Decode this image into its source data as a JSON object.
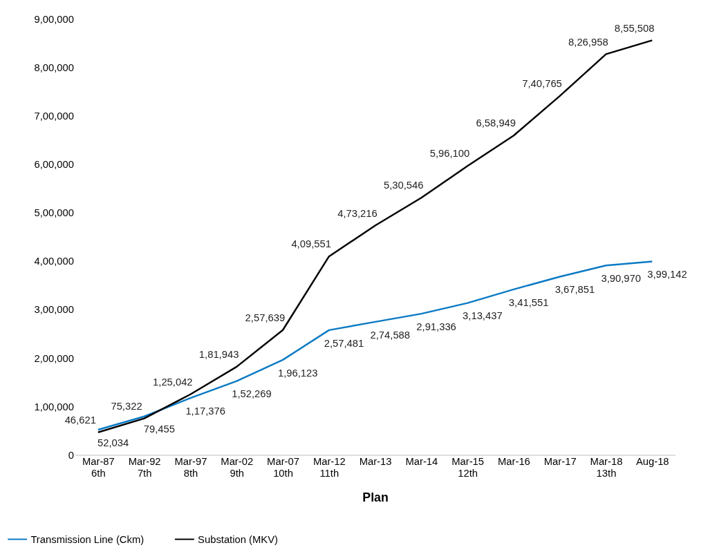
{
  "chart_data": {
    "type": "line",
    "xlabel": "Plan",
    "categories": [
      "Mar-87\n6th",
      "Mar-92\n7th",
      "Mar-97\n8th",
      "Mar-02\n9th",
      "Mar-07\n10th",
      "Mar-12\n11th",
      "Mar-13",
      "Mar-14",
      "Mar-15\n12th",
      "Mar-16",
      "Mar-17",
      "Mar-18\n13th",
      "Aug-18"
    ],
    "series": [
      {
        "name": "Transmission Line (Ckm)",
        "color": "#0a7ac4",
        "values": [
          52034,
          79455,
          117376,
          152269,
          196123,
          257481,
          274588,
          291336,
          313437,
          341551,
          367851,
          390970,
          399142
        ],
        "value_labels": [
          "52,034",
          "79,455",
          "1,17,376",
          "1,52,269",
          "1,96,123",
          "2,57,481",
          "2,74,588",
          "2,91,336",
          "3,13,437",
          "3,41,551",
          "3,67,851",
          "3,90,970",
          "3,99,142"
        ]
      },
      {
        "name": "Substation (MKV)",
        "color": "#000000",
        "values": [
          46621,
          75322,
          125042,
          181943,
          257639,
          409551,
          473216,
          530546,
          596100,
          658949,
          740765,
          826958,
          855508
        ],
        "value_labels": [
          "46,621",
          "75,322",
          "1,25,042",
          "1,81,943",
          "2,57,639",
          "4,09,551",
          "4,73,216",
          "5,30,546",
          "5,96,100",
          "6,58,949",
          "7,40,765",
          "8,26,958",
          "8,55,508"
        ]
      }
    ],
    "ylim": [
      0,
      900000
    ],
    "yticks": [
      0,
      {
        "value": 100000,
        "label": "1,00,000"
      },
      {
        "value": 200000,
        "label": "2,00,000"
      },
      {
        "value": 300000,
        "label": "3,00,000"
      },
      {
        "value": 400000,
        "label": "4,00,000"
      },
      {
        "value": 500000,
        "label": "5,00,000"
      },
      {
        "value": 600000,
        "label": "6,00,000"
      },
      {
        "value": 700000,
        "label": "7,00,000"
      },
      {
        "value": 800000,
        "label": "8,00,000"
      },
      {
        "value": 900000,
        "label": "9,00,000"
      }
    ],
    "grid": false,
    "legend": "bottom left",
    "marker": "none",
    "line_style": "solid"
  }
}
